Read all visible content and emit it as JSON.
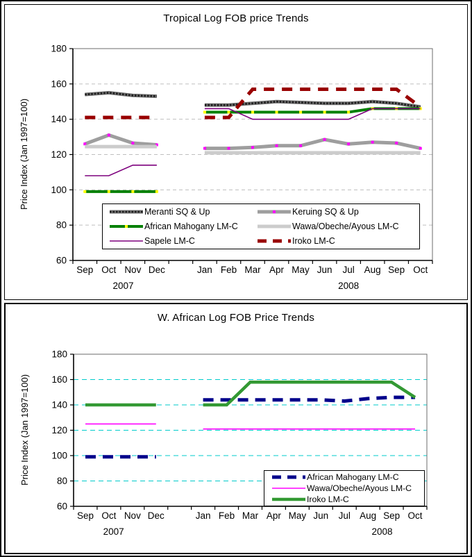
{
  "chart_data": [
    {
      "type": "line",
      "title": "Tropical Log FOB price Trends",
      "ylabel": "Price Index (Jan 1997=100)",
      "ylim": [
        60,
        180
      ],
      "ytick_step": 20,
      "grid": {
        "color": "#BFBFBF",
        "dash": "5,4",
        "on": true
      },
      "legend_position": "inside-bottom-center",
      "categories": [
        "Sep",
        "Oct",
        "Nov",
        "Dec",
        "",
        "Jan",
        "Feb",
        "Mar",
        "Apr",
        "May",
        "Jun",
        "Jul",
        "Aug",
        "Sep",
        "Oct"
      ],
      "year_labels": [
        "2007",
        "2008"
      ],
      "series": [
        {
          "name": "Meranti SQ & Up",
          "color": "#6F6F6F",
          "overlay": "#1C1C1C",
          "overlay_dash": "2.5,2",
          "width": 5,
          "dash": null,
          "marker": null,
          "values": [
            154,
            155,
            153.5,
            153,
            null,
            148,
            148,
            149,
            150,
            149.5,
            149,
            149,
            150,
            149,
            147
          ]
        },
        {
          "name": "Keruing SQ & Up",
          "color": "#9E9E9E",
          "overlay": null,
          "overlay_dash": null,
          "width": 5,
          "dash": null,
          "marker": "#FF00FF",
          "values": [
            126,
            131,
            126.5,
            125.5,
            null,
            123.5,
            123.5,
            124,
            125,
            125,
            128.5,
            126,
            127,
            126.5,
            123.5
          ]
        },
        {
          "name": "African Mahogany LM-C",
          "color": "#008000",
          "overlay": null,
          "overlay_dash": null,
          "width": 4,
          "dash": null,
          "marker": "#FFFF00",
          "values": [
            99,
            99,
            99,
            99,
            null,
            144,
            144,
            144,
            144,
            144,
            144,
            144,
            146,
            146,
            146
          ]
        },
        {
          "name": "Wawa/Obeche/Ayous LM-C",
          "color": "#CCCCCC",
          "overlay": null,
          "overlay_dash": null,
          "width": 5,
          "dash": null,
          "marker": null,
          "values": [
            124.5,
            124.5,
            124.5,
            124.5,
            null,
            121,
            121,
            121,
            121,
            121,
            121,
            121,
            121,
            121,
            121
          ]
        },
        {
          "name": "Sapele LM-C",
          "color": "#7D007D",
          "overlay": null,
          "overlay_dash": null,
          "width": 1.6,
          "dash": null,
          "marker": null,
          "values": [
            108,
            108,
            114,
            114,
            null,
            146,
            146,
            140,
            140,
            140,
            140,
            140,
            146,
            146,
            146
          ]
        },
        {
          "name": "Iroko LM-C",
          "color": "#990000",
          "overlay": null,
          "overlay_dash": null,
          "width": 5,
          "dash": "15,11",
          "marker": null,
          "values": [
            141,
            141,
            141,
            141,
            null,
            141,
            141,
            157,
            157,
            157,
            157,
            157,
            157,
            157,
            147
          ]
        }
      ]
    },
    {
      "type": "line",
      "title": "W. African Log FOB Price Trends",
      "ylabel": "Price Index (Jan 1997=100)",
      "ylim": [
        60,
        180
      ],
      "ytick_step": 20,
      "grid": {
        "color": "#00CBCB",
        "dash": "7,5",
        "on": true
      },
      "legend_position": "inside-bottom-right",
      "categories": [
        "Sep",
        "Oct",
        "Nov",
        "Dec",
        "",
        "Jan",
        "Feb",
        "Mar",
        "Apr",
        "May",
        "Jun",
        "Jul",
        "Aug",
        "Sep",
        "Oct"
      ],
      "year_labels": [
        "2007",
        "2008"
      ],
      "series": [
        {
          "name": "African Mahogany LM-C",
          "color": "#00008B",
          "overlay": null,
          "overlay_dash": null,
          "width": 5,
          "dash": "15,10",
          "marker": null,
          "values": [
            99,
            99,
            99,
            99,
            null,
            144,
            144,
            144,
            144,
            144,
            144,
            143,
            145,
            146,
            146
          ]
        },
        {
          "name": "Wawa/Obeche/Ayous LM-C",
          "color": "#FF00FF",
          "overlay": null,
          "overlay_dash": null,
          "width": 1.6,
          "dash": null,
          "marker": null,
          "values": [
            125,
            125,
            125,
            125,
            null,
            121,
            121,
            121,
            121,
            121,
            121,
            121,
            121,
            121,
            121
          ]
        },
        {
          "name": "Iroko LM-C",
          "color": "#339933",
          "overlay": null,
          "overlay_dash": null,
          "width": 4.5,
          "dash": null,
          "marker": null,
          "values": [
            140,
            140,
            140,
            140,
            null,
            140,
            140,
            158,
            158,
            158,
            158,
            158,
            158,
            158,
            146
          ]
        }
      ]
    }
  ]
}
